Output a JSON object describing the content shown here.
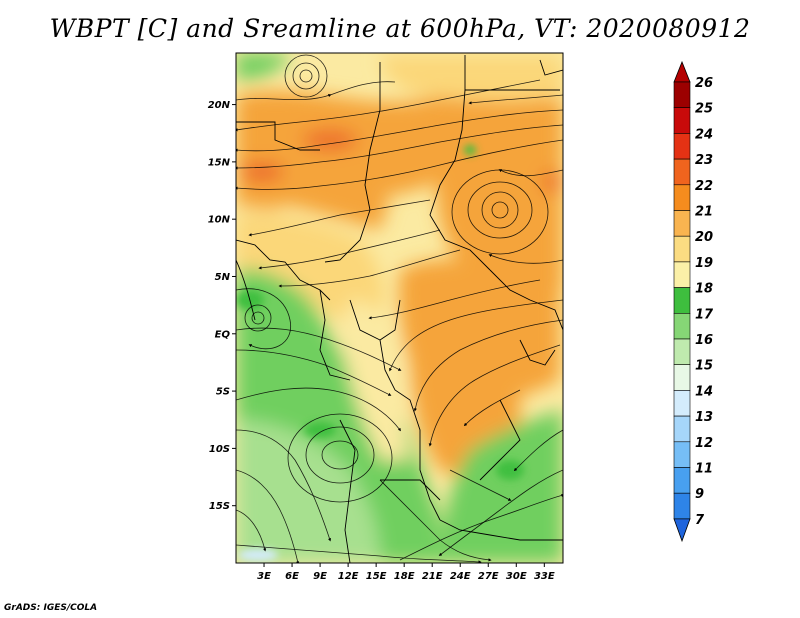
{
  "title": "WBPT [C] and Sreamline at 600hPa, VT: 2020080912",
  "credit": "GrADS: IGES/COLA",
  "map": {
    "lon_labels": [
      "3E",
      "6E",
      "9E",
      "12E",
      "15E",
      "18E",
      "21E",
      "24E",
      "27E",
      "30E",
      "33E"
    ],
    "lon_values": [
      3,
      6,
      9,
      12,
      15,
      18,
      21,
      24,
      27,
      30,
      33
    ],
    "lat_labels": [
      "20N",
      "15N",
      "10N",
      "5N",
      "EQ",
      "5S",
      "10S",
      "15S"
    ],
    "lat_values": [
      20,
      15,
      10,
      5,
      0,
      -5,
      -10,
      -15
    ],
    "lon_range": [
      0,
      35
    ],
    "lat_range": [
      -20,
      24.5
    ]
  },
  "colorbar": {
    "labels": [
      "7",
      "9",
      "11",
      "12",
      "13",
      "14",
      "15",
      "16",
      "17",
      "18",
      "19",
      "20",
      "21",
      "22",
      "23",
      "24",
      "25",
      "26"
    ],
    "colors": [
      "#1e64dc",
      "#2e84e8",
      "#48a0f0",
      "#76bef6",
      "#a6d6fa",
      "#d4ecfc",
      "#e8f8e6",
      "#bfeaae",
      "#86d676",
      "#3ebe3e",
      "#fbf0a8",
      "#fbdc82",
      "#f9b450",
      "#f58c1e",
      "#f0641e",
      "#e43214",
      "#c80a0a",
      "#9c0000"
    ],
    "max_arrow_color": "#b40000",
    "min_arrow_color": "#1e64dc"
  },
  "fields": {
    "green": "#6fcf5e",
    "green_light": "#a7e08f",
    "green_dark": "#3fbf3f",
    "cream": "#fbeaa2",
    "yellow": "#fbd779",
    "orange": "#f5a43a",
    "orange_deep": "#f08a28",
    "red_orange": "#ed6a2a"
  }
}
